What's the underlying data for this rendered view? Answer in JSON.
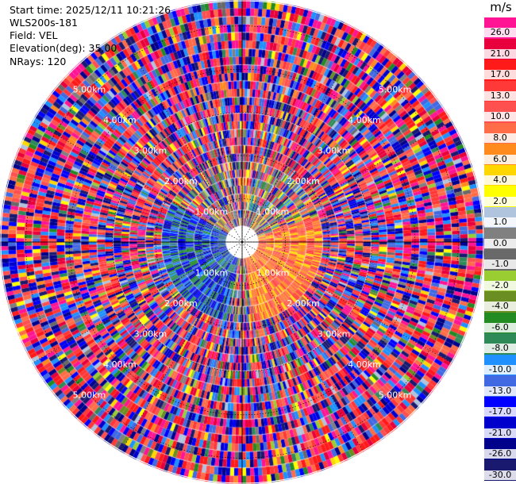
{
  "info": {
    "start_time": "Start time: 2025/12/11 10:21:26",
    "station": "WLS200s-181",
    "field": "Field: VEL",
    "elevation": "Elevation(deg): 35.00",
    "nrays": "NRays: 120"
  },
  "colorbar": {
    "unit": "m/s",
    "levels": [
      {
        "label": "26.0",
        "color": "#ff1493"
      },
      {
        "label": "21.0",
        "color": "#e8003c"
      },
      {
        "label": "17.0",
        "color": "#ff1a1a"
      },
      {
        "label": "13.0",
        "color": "#ff3838"
      },
      {
        "label": "10.0",
        "color": "#ff5050"
      },
      {
        "label": "8.0",
        "color": "#ff6c48"
      },
      {
        "label": "6.0",
        "color": "#ff8a1e"
      },
      {
        "label": "4.0",
        "color": "#ffd700"
      },
      {
        "label": "2.0",
        "color": "#ffff00"
      },
      {
        "label": "1.0",
        "color": "#b0c4de"
      },
      {
        "label": "0.0",
        "color": "#808080"
      },
      {
        "label": "-1.0",
        "color": "#696969"
      },
      {
        "label": "-2.0",
        "color": "#9acd32"
      },
      {
        "label": "-4.0",
        "color": "#6b8e23"
      },
      {
        "label": "-6.0",
        "color": "#228b22"
      },
      {
        "label": "-8.0",
        "color": "#2e8b57"
      },
      {
        "label": "-10.0",
        "color": "#1e90ff"
      },
      {
        "label": "-13.0",
        "color": "#4169e1"
      },
      {
        "label": "-17.0",
        "color": "#0000ff"
      },
      {
        "label": "-21.0",
        "color": "#0000cd"
      },
      {
        "label": "-26.0",
        "color": "#00008b"
      },
      {
        "label": "-30.0",
        "color": "#191970"
      }
    ]
  },
  "chart_data": {
    "type": "heatmap",
    "projection": "polar PPI",
    "field": "VEL",
    "unit": "m/s",
    "elevation_deg": 35.0,
    "nrays": 120,
    "range_rings_km": [
      "1.00km",
      "2.00km",
      "3.00km",
      "4.00km",
      "5.00km"
    ],
    "max_range_km": 5.6,
    "spokes_deg": [
      0,
      30,
      60,
      90,
      120,
      150,
      180,
      210,
      240,
      270,
      300,
      330
    ],
    "dominant_pattern": "mixed noisy velocities; near-range sector west dominated by negative (blue), east/south-east sector by positive (orange/red)"
  }
}
